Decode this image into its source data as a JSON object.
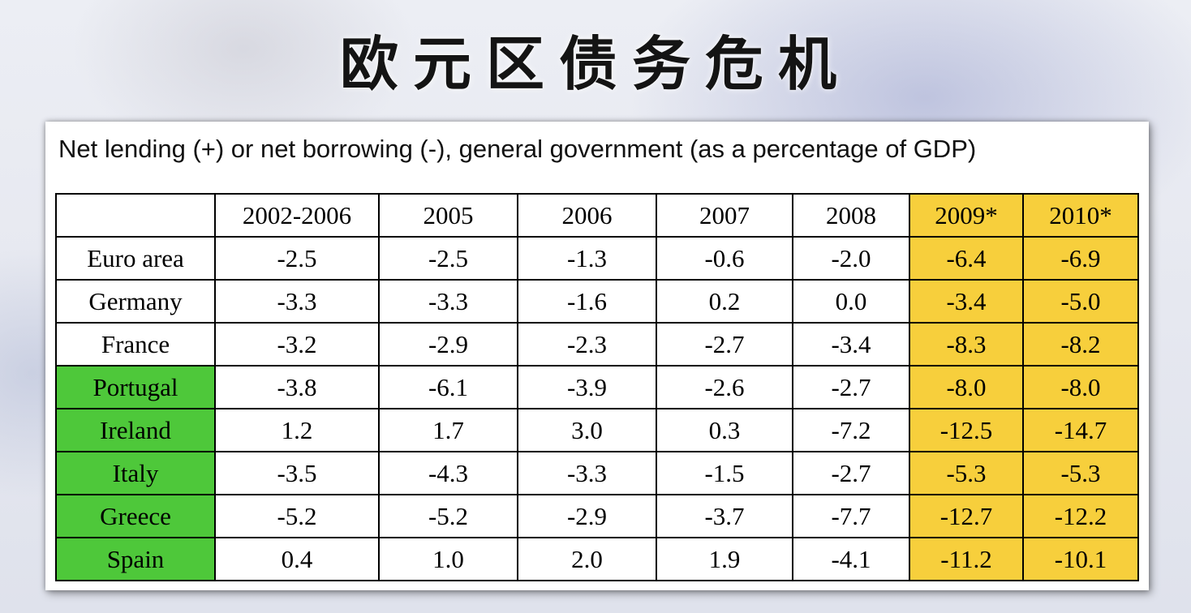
{
  "slide": {
    "title": "欧元区债务危机"
  },
  "table": {
    "caption": "Net lending (+) or net borrowing (-), general government (as a percentage of GDP)",
    "header": [
      "",
      "2002-2006",
      "2005",
      "2006",
      "2007",
      "2008",
      "2009*",
      "2010*"
    ],
    "rows": [
      {
        "country": "Euro area",
        "values": [
          "-2.5",
          "-2.5",
          "-1.3",
          "-0.6",
          "-2.0",
          "-6.4",
          "-6.9"
        ]
      },
      {
        "country": "Germany",
        "values": [
          "-3.3",
          "-3.3",
          "-1.6",
          "0.2",
          "0.0",
          "-3.4",
          "-5.0"
        ]
      },
      {
        "country": "France",
        "values": [
          "-3.2",
          "-2.9",
          "-2.3",
          "-2.7",
          "-3.4",
          "-8.3",
          "-8.2"
        ]
      },
      {
        "country": "Portugal",
        "values": [
          "-3.8",
          "-6.1",
          "-3.9",
          "-2.6",
          "-2.7",
          "-8.0",
          "-8.0"
        ]
      },
      {
        "country": "Ireland",
        "values": [
          "1.2",
          "1.7",
          "3.0",
          "0.3",
          "-7.2",
          "-12.5",
          "-14.7"
        ]
      },
      {
        "country": "Italy",
        "values": [
          "-3.5",
          "-4.3",
          "-3.3",
          "-1.5",
          "-2.7",
          "-5.3",
          "-5.3"
        ]
      },
      {
        "country": "Greece",
        "values": [
          "-5.2",
          "-5.2",
          "-2.9",
          "-3.7",
          "-7.7",
          "-12.7",
          "-12.2"
        ]
      },
      {
        "country": "Spain",
        "values": [
          "0.4",
          "1.0",
          "2.0",
          "1.9",
          "-4.1",
          "-11.2",
          "-10.1"
        ]
      }
    ]
  },
  "colors": {
    "forecast_highlight": "#f7cf3c",
    "crisis_country_highlight": "#4ec83a"
  }
}
